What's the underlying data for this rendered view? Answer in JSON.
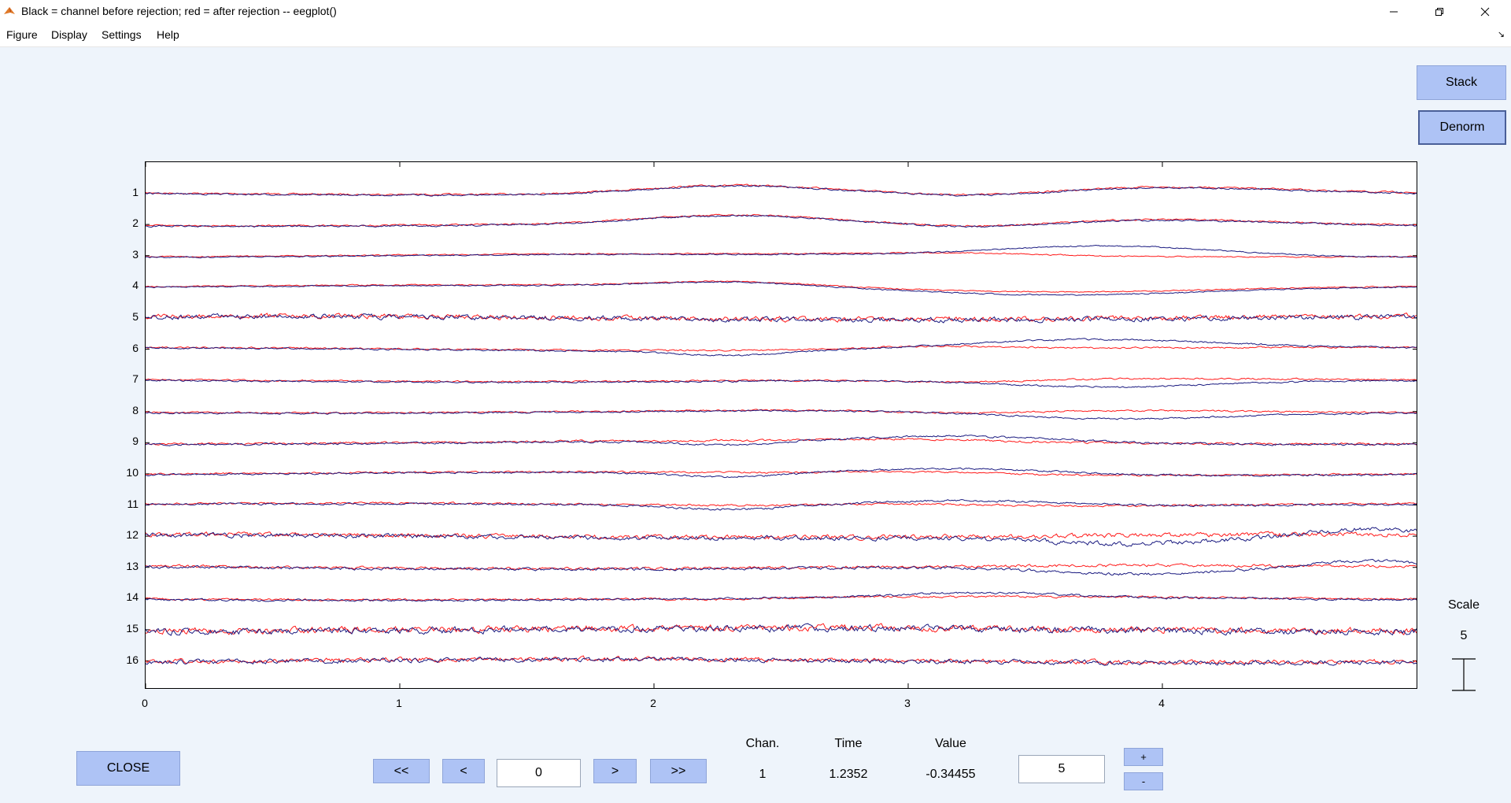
{
  "window": {
    "title": "Black = channel before rejection; red = after rejection -- eegplot()",
    "controls": [
      "minimize-icon",
      "restore-icon",
      "close-icon"
    ]
  },
  "menu": [
    "Figure",
    "Display",
    "Settings",
    "Help"
  ],
  "buttons": {
    "stack": "Stack",
    "denorm": "Denorm",
    "close": "CLOSE",
    "first": "<<",
    "prev": "<",
    "next": ">",
    "last": ">>",
    "plus": "+",
    "minus": "-"
  },
  "time_input": "0",
  "readout": {
    "chan_label": "Chan.",
    "time_label": "Time",
    "value_label": "Value",
    "chan": "1",
    "time": "1.2352",
    "value": "-0.34455"
  },
  "scale": {
    "label": "Scale",
    "value": "5",
    "input": "5"
  },
  "plot": {
    "channels": [
      "1",
      "2",
      "3",
      "4",
      "5",
      "6",
      "7",
      "8",
      "9",
      "10",
      "11",
      "12",
      "13",
      "14",
      "15",
      "16"
    ],
    "x_ticks": [
      "0",
      "1",
      "2",
      "3",
      "4"
    ],
    "x_range": [
      0,
      5
    ],
    "colors": {
      "before": "#1a1a80",
      "after": "#ff1a1a"
    },
    "series_legend": "Black = channel before rejection; red = after rejection"
  }
}
